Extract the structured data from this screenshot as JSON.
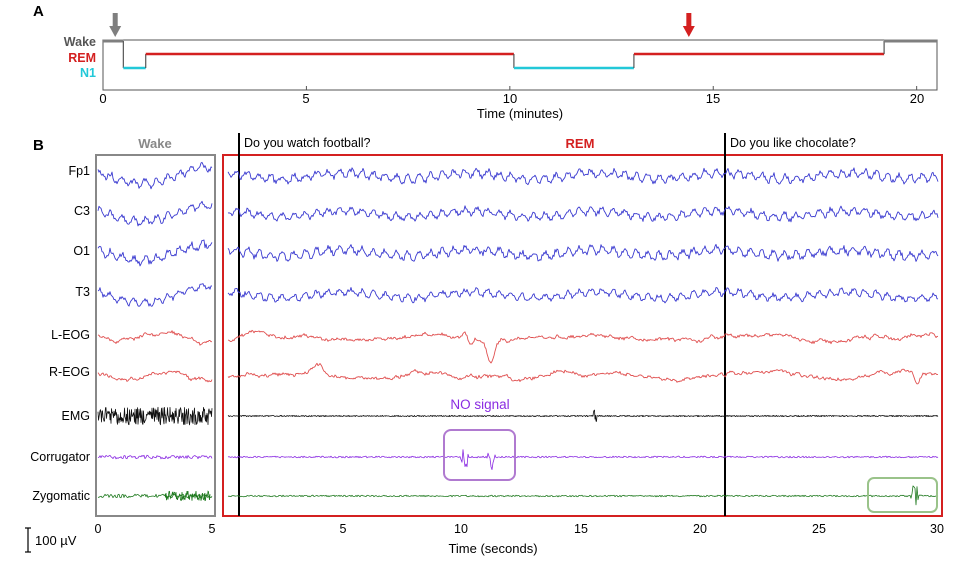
{
  "panel_a": {
    "label": "A",
    "xlabel": "Time (minutes)",
    "xticks": [
      "0",
      "5",
      "10",
      "15",
      "20"
    ],
    "stage_labels": [
      "Wake",
      "REM",
      "N1"
    ]
  },
  "panel_b": {
    "label": "B",
    "wake_label": "Wake",
    "rem_label": "REM",
    "question_1": "Do you watch football?",
    "question_2": "Do you like chocolate?",
    "no_signal_label": "NO signal",
    "channels": [
      "Fp1",
      "C3",
      "O1",
      "T3",
      "L-EOG",
      "R-EOG",
      "EMG",
      "Corrugator",
      "Zygomatic"
    ],
    "wake_xticks": [
      "0",
      "5"
    ],
    "rem_xticks": [
      "5",
      "10",
      "15",
      "20",
      "25",
      "30"
    ],
    "xlabel": "Time (seconds)",
    "scale_label": "100 µV"
  },
  "colors": {
    "wake": "#7f7f7f",
    "rem": "#d42020",
    "n1": "#22c8d8",
    "eeg": "#3a3ad0",
    "eog": "#e05050",
    "emg": "#111111",
    "corrugator": "#8a2be2",
    "zygomatic": "#1f7a1f",
    "highlight_purple": "#b07ad0",
    "highlight_green": "#9ac38a"
  },
  "chart_data": [
    {
      "type": "line",
      "xlabel": "Time (minutes)",
      "ylabel": "",
      "xlim": [
        0,
        20.5
      ],
      "categories": [
        "N1",
        "REM",
        "Wake"
      ],
      "segments": [
        {
          "stage": "Wake",
          "start": 0.0,
          "end": 0.5
        },
        {
          "stage": "N1",
          "start": 0.5,
          "end": 1.05
        },
        {
          "stage": "REM",
          "start": 1.05,
          "end": 10.1
        },
        {
          "stage": "N1",
          "start": 10.1,
          "end": 13.05
        },
        {
          "stage": "REM",
          "start": 13.05,
          "end": 19.2
        },
        {
          "stage": "Wake",
          "start": 19.2,
          "end": 20.5
        }
      ],
      "markers": [
        {
          "stage": "Wake",
          "x": 0.3
        },
        {
          "stage": "REM",
          "x": 14.4
        }
      ]
    },
    {
      "type": "line",
      "xlabel": "Time (seconds)",
      "ylabel": "",
      "channels": [
        "Fp1",
        "C3",
        "O1",
        "T3",
        "L-EOG",
        "R-EOG",
        "EMG",
        "Corrugator",
        "Zygomatic"
      ],
      "wake_xlim": [
        0,
        5
      ],
      "rem_xlim": [
        4.3,
        30
      ],
      "question_times": [
        5.6,
        21.0
      ],
      "scale_bar": "100 µV",
      "highlights": [
        {
          "channel": "Corrugator",
          "x_range": [
            9.5,
            12.0
          ]
        },
        {
          "channel": "Zygomatic",
          "x_range": [
            27.2,
            29.8
          ]
        }
      ]
    }
  ]
}
